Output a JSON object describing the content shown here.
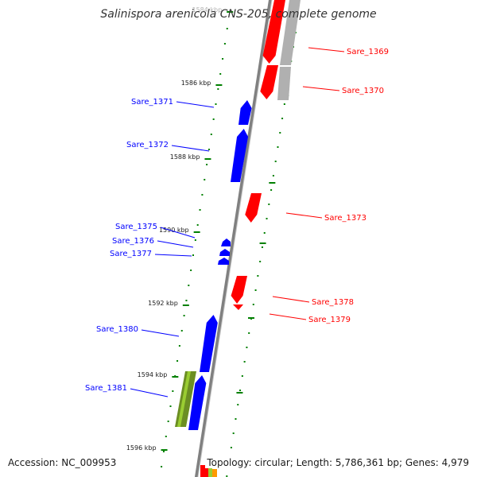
{
  "title": "Salinispora arenicola CNS-205, complete genome",
  "accession": "Accession: NC_009953",
  "summary": "Topology: circular; Length: 5,786,361 bp; Genes: 4,979",
  "colors": {
    "forward_gene": "#0000ff",
    "reverse_gene": "#ff0000",
    "rna_gene": "#6b8e23",
    "gray_feature": "#b0b0b0",
    "tick": "#008000",
    "backbone": "#808080"
  },
  "kbp_ticks": [
    {
      "label": "1584 kbp"
    },
    {
      "label": "1586 kbp"
    },
    {
      "label": "1588 kbp"
    },
    {
      "label": "1590 kbp"
    },
    {
      "label": "1592 kbp"
    },
    {
      "label": "1594 kbp"
    },
    {
      "label": "1596 kbp"
    }
  ],
  "forward_genes": [
    {
      "label": "Sare_1371"
    },
    {
      "label": "Sare_1372"
    },
    {
      "label": "Sare_1375"
    },
    {
      "label": "Sare_1376"
    },
    {
      "label": "Sare_1377"
    },
    {
      "label": "Sare_1380"
    },
    {
      "label": "Sare_1381"
    }
  ],
  "reverse_genes": [
    {
      "label": "Sare_1369"
    },
    {
      "label": "Sare_1370"
    },
    {
      "label": "Sare_1373"
    },
    {
      "label": "Sare_1378"
    },
    {
      "label": "Sare_1379"
    }
  ]
}
